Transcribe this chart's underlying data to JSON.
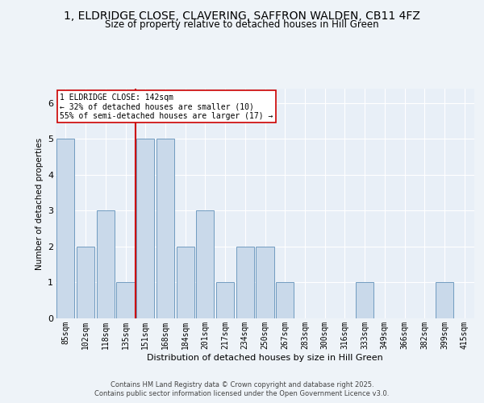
{
  "title_line1": "1, ELDRIDGE CLOSE, CLAVERING, SAFFRON WALDEN, CB11 4FZ",
  "title_line2": "Size of property relative to detached houses in Hill Green",
  "xlabel": "Distribution of detached houses by size in Hill Green",
  "ylabel": "Number of detached properties",
  "categories": [
    "85sqm",
    "102sqm",
    "118sqm",
    "135sqm",
    "151sqm",
    "168sqm",
    "184sqm",
    "201sqm",
    "217sqm",
    "234sqm",
    "250sqm",
    "267sqm",
    "283sqm",
    "300sqm",
    "316sqm",
    "333sqm",
    "349sqm",
    "366sqm",
    "382sqm",
    "399sqm",
    "415sqm"
  ],
  "values": [
    5,
    2,
    3,
    1,
    5,
    5,
    2,
    3,
    1,
    2,
    2,
    1,
    0,
    0,
    0,
    1,
    0,
    0,
    0,
    1,
    0
  ],
  "bar_color": "#c9d9ea",
  "bar_edge_color": "#6090b8",
  "ylim": [
    0,
    6.4
  ],
  "yticks": [
    0,
    1,
    2,
    3,
    4,
    5,
    6
  ],
  "red_line_x": 3.5,
  "red_line_color": "#cc0000",
  "annotation_text": "1 ELDRIDGE CLOSE: 142sqm\n← 32% of detached houses are smaller (10)\n55% of semi-detached houses are larger (17) →",
  "annotation_box_color": "#ffffff",
  "annotation_box_edge": "#cc0000",
  "footer_line1": "Contains HM Land Registry data © Crown copyright and database right 2025.",
  "footer_line2": "Contains public sector information licensed under the Open Government Licence v3.0.",
  "bg_color": "#eef3f8",
  "plot_bg_color": "#e8eff7",
  "grid_color": "#ffffff",
  "title_fontsize": 10,
  "subtitle_fontsize": 8.5,
  "xlabel_fontsize": 8,
  "ylabel_fontsize": 7.5,
  "tick_fontsize": 7,
  "annotation_fontsize": 7,
  "footer_fontsize": 6
}
